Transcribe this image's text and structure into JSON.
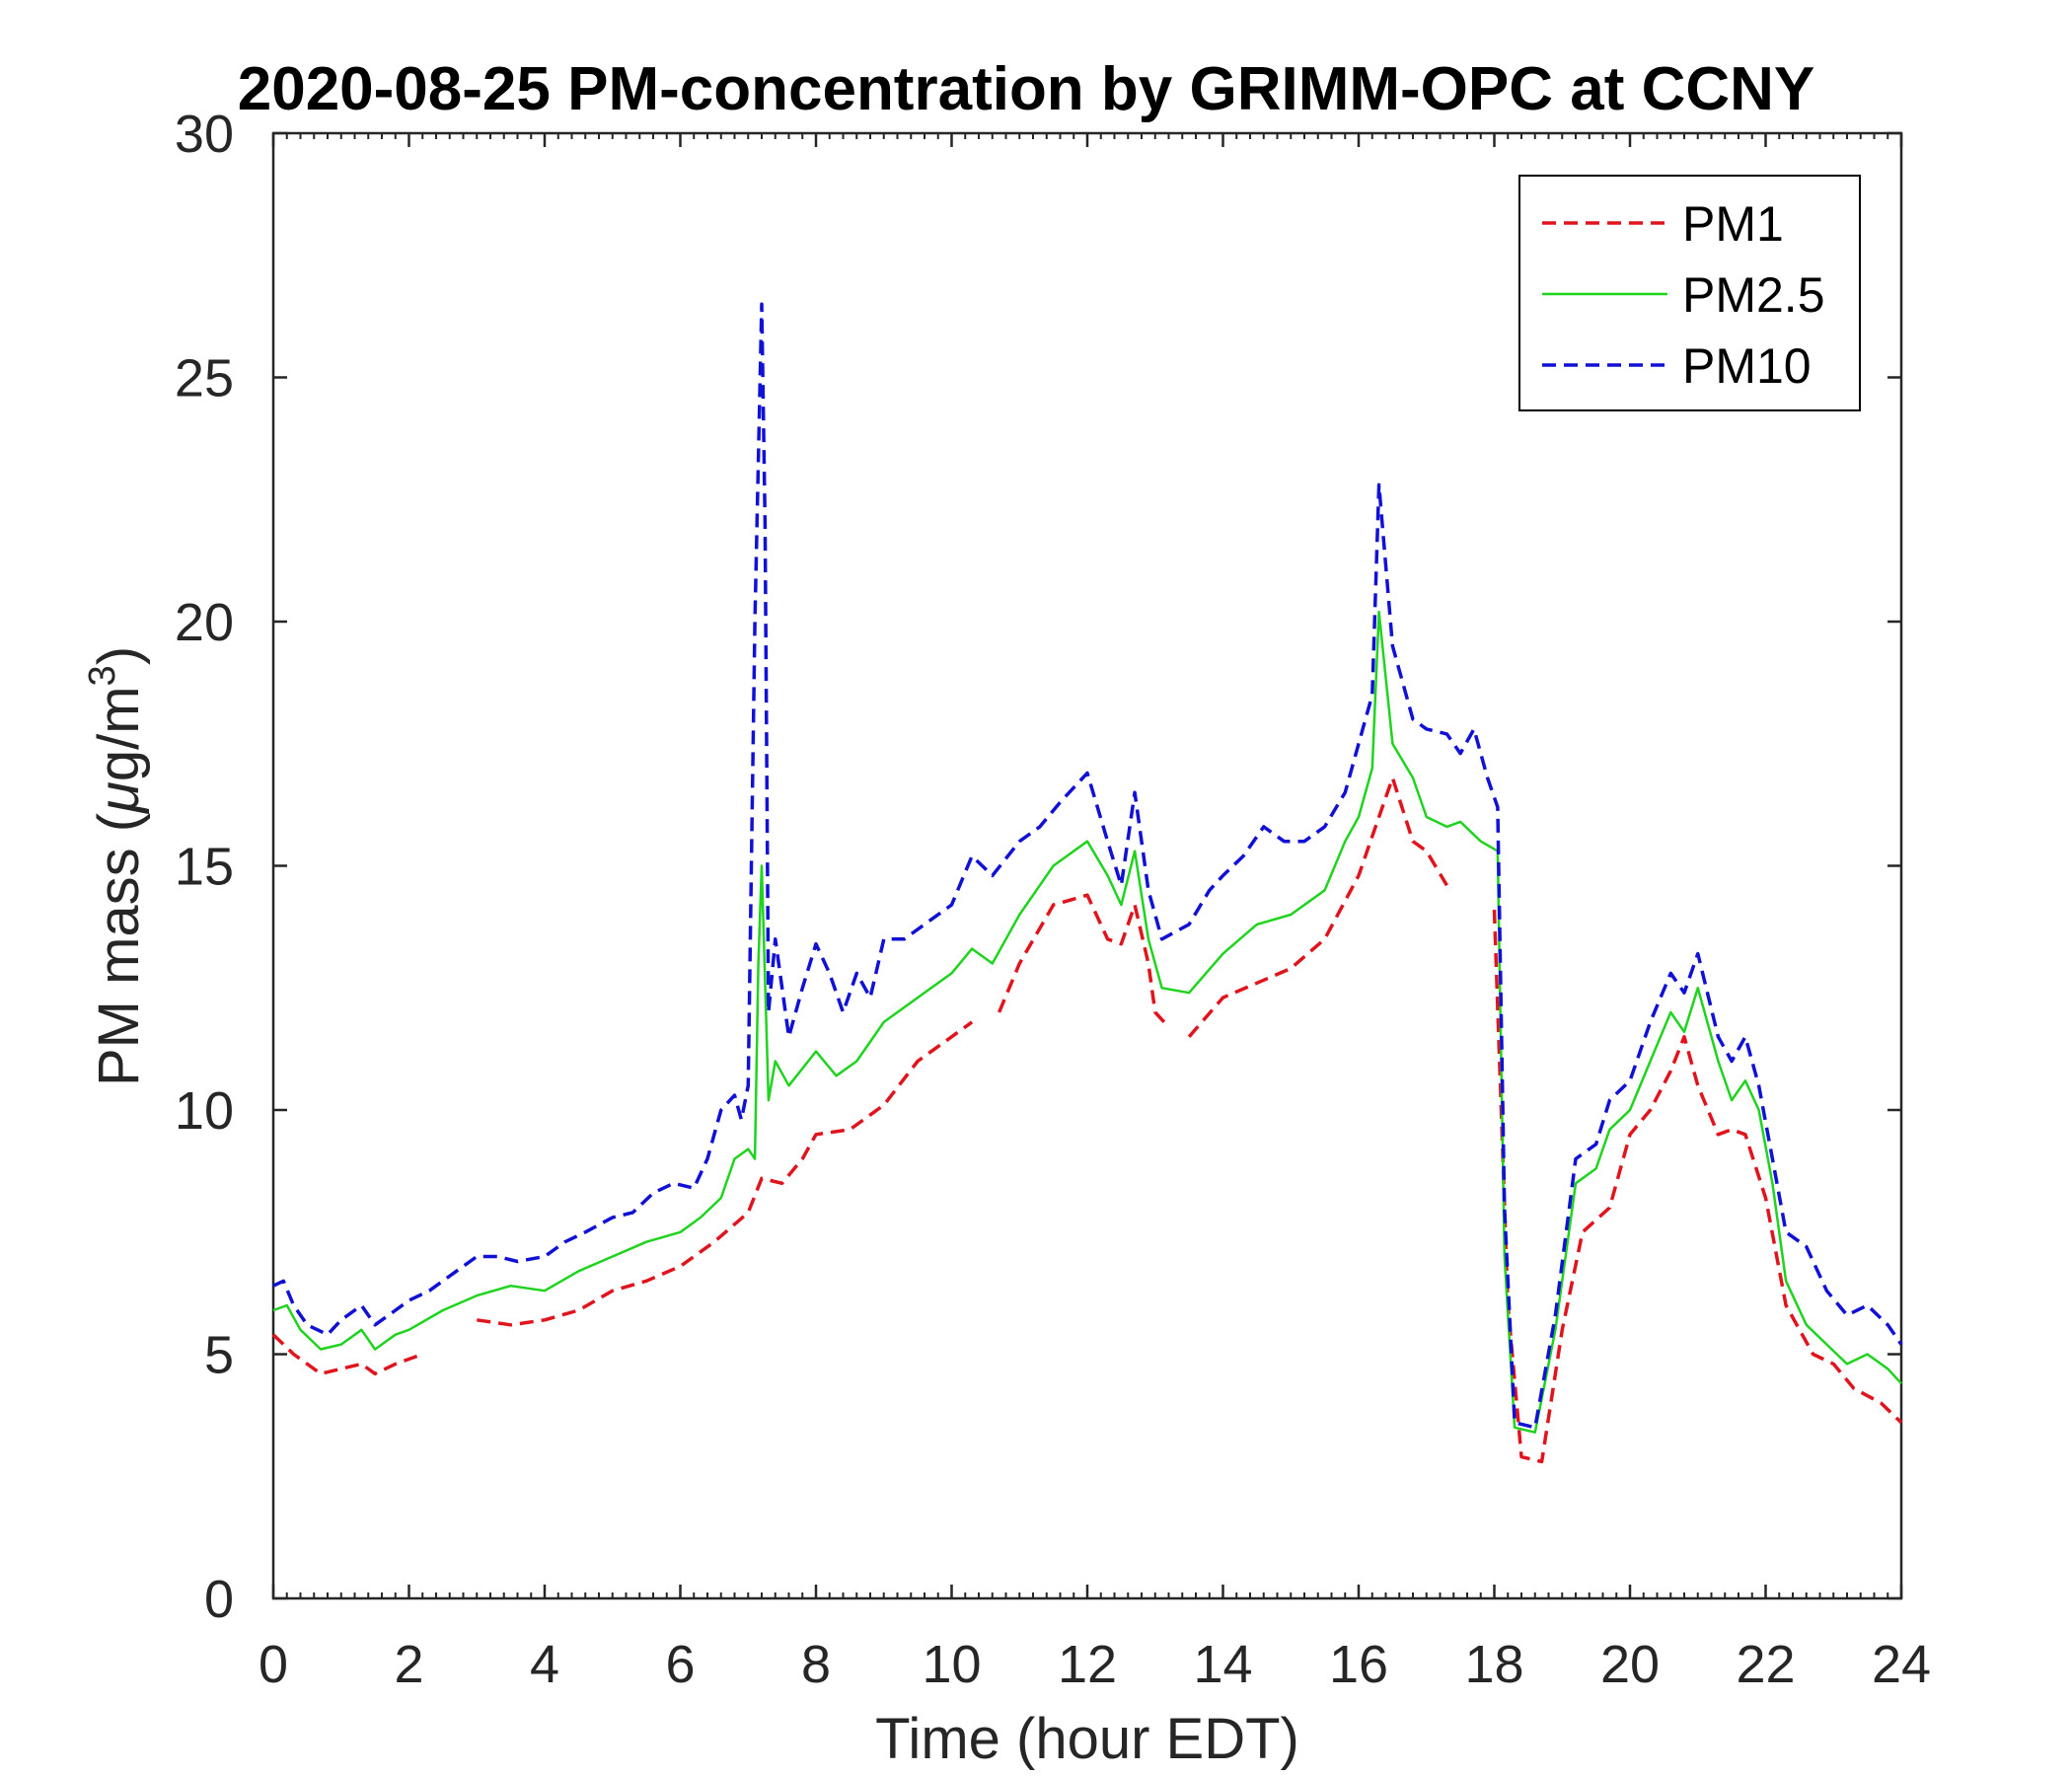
{
  "chart_data": {
    "type": "line",
    "title": "2020-08-25 PM-concentration by GRIMM-OPC at CCNY",
    "xlabel": "Time (hour EDT)",
    "ylabel_prefix": "PM mass (",
    "ylabel_mu": "μ",
    "ylabel_unit": "g/m",
    "ylabel_exp": "3",
    "ylabel_suffix": ")",
    "xlim": [
      0,
      24
    ],
    "ylim": [
      0,
      30
    ],
    "xticks": [
      0,
      2,
      4,
      6,
      8,
      10,
      12,
      14,
      16,
      18,
      20,
      22,
      24
    ],
    "yticks": [
      0,
      5,
      10,
      15,
      20,
      25,
      30
    ],
    "grid": false,
    "legend_position": "top-right",
    "series": [
      {
        "name": "PM1",
        "color": "#e0141c",
        "style": "dashed",
        "x": [
          0,
          0.3,
          0.7,
          1.0,
          1.3,
          1.5,
          1.8,
          2.2,
          null,
          3.0,
          3.5,
          4.0,
          4.5,
          5.0,
          5.5,
          6.0,
          6.5,
          7.0,
          7.2,
          7.5,
          7.8,
          8.0,
          8.5,
          9.0,
          9.5,
          10.0,
          10.3,
          null,
          10.7,
          11.0,
          11.5,
          12.0,
          12.3,
          12.5,
          12.7,
          12.9,
          13.0,
          13.2,
          null,
          13.5,
          14.0,
          14.5,
          15.0,
          15.5,
          16.0,
          16.3,
          16.5,
          16.8,
          17.0,
          17.3,
          null,
          18.0,
          18.2,
          18.4,
          18.7,
          19.0,
          19.3,
          19.7,
          20.0,
          20.3,
          20.6,
          20.8,
          21.0,
          21.3,
          21.5,
          21.7,
          22.0,
          22.3,
          22.7,
          23.0,
          23.3,
          23.7,
          24.0
        ],
        "y": [
          5.4,
          5.0,
          4.6,
          4.7,
          4.8,
          4.6,
          4.8,
          5.0,
          null,
          5.7,
          5.6,
          5.7,
          5.9,
          6.3,
          6.5,
          6.8,
          7.3,
          7.9,
          8.6,
          8.5,
          9.0,
          9.5,
          9.6,
          10.1,
          11.0,
          11.5,
          11.8,
          null,
          12.0,
          13.0,
          14.2,
          14.4,
          13.5,
          13.4,
          14.2,
          13.0,
          12.0,
          11.7,
          null,
          11.5,
          12.3,
          12.6,
          12.9,
          13.5,
          14.8,
          16.0,
          16.8,
          15.5,
          15.3,
          14.6,
          null,
          14.1,
          6.0,
          2.9,
          2.8,
          5.5,
          7.5,
          8.0,
          9.5,
          10.0,
          10.8,
          11.5,
          10.5,
          9.5,
          9.6,
          9.5,
          8.2,
          6.0,
          5.0,
          4.8,
          4.3,
          4.0,
          3.6
        ]
      },
      {
        "name": "PM2.5",
        "color": "#1fd31f",
        "style": "solid",
        "x": [
          0,
          0.2,
          0.4,
          0.7,
          1.0,
          1.3,
          1.5,
          1.8,
          2.0,
          2.5,
          3.0,
          3.5,
          4.0,
          4.5,
          5.0,
          5.5,
          6.0,
          6.3,
          6.6,
          6.8,
          7.0,
          7.1,
          7.15,
          7.2,
          7.3,
          7.4,
          7.6,
          8.0,
          8.3,
          8.6,
          9.0,
          9.5,
          10.0,
          10.3,
          10.6,
          11.0,
          11.5,
          12.0,
          12.3,
          12.5,
          12.7,
          12.9,
          13.1,
          13.5,
          14.0,
          14.5,
          15.0,
          15.5,
          15.8,
          16.0,
          16.2,
          16.3,
          16.5,
          16.8,
          17.0,
          17.3,
          17.5,
          17.8,
          18.05,
          18.15,
          18.3,
          18.6,
          18.9,
          19.2,
          19.5,
          19.7,
          20.0,
          20.3,
          20.6,
          20.8,
          21.0,
          21.3,
          21.5,
          21.7,
          21.9,
          22.1,
          22.3,
          22.6,
          22.9,
          23.2,
          23.5,
          23.8,
          24.0
        ],
        "y": [
          5.9,
          6.0,
          5.5,
          5.1,
          5.2,
          5.5,
          5.1,
          5.4,
          5.5,
          5.9,
          6.2,
          6.4,
          6.3,
          6.7,
          7.0,
          7.3,
          7.5,
          7.8,
          8.2,
          9.0,
          9.2,
          9.0,
          13.0,
          15.0,
          10.2,
          11.0,
          10.5,
          11.2,
          10.7,
          11.0,
          11.8,
          12.3,
          12.8,
          13.3,
          13.0,
          14.0,
          15.0,
          15.5,
          14.8,
          14.2,
          15.3,
          13.5,
          12.5,
          12.4,
          13.2,
          13.8,
          14.0,
          14.5,
          15.5,
          16.0,
          17.0,
          20.2,
          17.5,
          16.8,
          16.0,
          15.8,
          15.9,
          15.5,
          15.3,
          7.0,
          3.5,
          3.4,
          5.5,
          8.5,
          8.8,
          9.6,
          10.0,
          11.0,
          12.0,
          11.6,
          12.5,
          11.0,
          10.2,
          10.6,
          10.0,
          8.5,
          6.5,
          5.6,
          5.2,
          4.8,
          5.0,
          4.7,
          4.4
        ]
      },
      {
        "name": "PM10",
        "color": "#1111d6",
        "style": "dashed",
        "x": [
          0,
          0.15,
          0.3,
          0.5,
          0.8,
          1.0,
          1.3,
          1.5,
          1.8,
          2.0,
          2.3,
          2.7,
          3.0,
          3.3,
          3.6,
          4.0,
          4.3,
          4.6,
          5.0,
          5.3,
          5.6,
          5.9,
          6.2,
          6.4,
          6.6,
          6.8,
          6.9,
          7.0,
          7.1,
          7.2,
          7.25,
          7.3,
          7.4,
          7.6,
          7.8,
          8.0,
          8.2,
          8.4,
          8.6,
          8.8,
          9.0,
          9.3,
          9.6,
          10.0,
          10.3,
          10.6,
          11.0,
          11.3,
          11.6,
          12.0,
          12.3,
          12.5,
          12.7,
          12.9,
          13.1,
          13.5,
          13.8,
          14.0,
          14.3,
          14.6,
          14.9,
          15.2,
          15.5,
          15.8,
          16.0,
          16.2,
          16.3,
          16.5,
          16.8,
          17.0,
          17.3,
          17.5,
          17.7,
          17.9,
          18.05,
          18.15,
          18.3,
          18.6,
          18.9,
          19.2,
          19.5,
          19.7,
          20.0,
          20.3,
          20.6,
          20.8,
          21.0,
          21.3,
          21.5,
          21.7,
          21.9,
          22.1,
          22.3,
          22.6,
          22.9,
          23.2,
          23.5,
          23.8,
          24.0
        ],
        "y": [
          6.4,
          6.5,
          6.0,
          5.6,
          5.4,
          5.7,
          6.0,
          5.6,
          5.9,
          6.1,
          6.3,
          6.7,
          7.0,
          7.0,
          6.9,
          7.0,
          7.3,
          7.5,
          7.8,
          7.9,
          8.3,
          8.5,
          8.4,
          9.0,
          10.0,
          10.3,
          9.8,
          10.5,
          20.0,
          26.5,
          22.0,
          12.0,
          13.5,
          11.5,
          12.5,
          13.4,
          12.8,
          12.0,
          12.8,
          12.3,
          13.5,
          13.5,
          13.8,
          14.2,
          15.2,
          14.8,
          15.5,
          15.8,
          16.3,
          16.9,
          15.5,
          14.6,
          16.5,
          14.5,
          13.5,
          13.8,
          14.5,
          14.8,
          15.2,
          15.8,
          15.5,
          15.5,
          15.8,
          16.5,
          17.5,
          18.5,
          22.8,
          19.5,
          18.0,
          17.8,
          17.7,
          17.3,
          17.8,
          16.8,
          16.2,
          8.0,
          3.6,
          3.5,
          5.8,
          9.0,
          9.3,
          10.2,
          10.6,
          11.8,
          12.8,
          12.4,
          13.2,
          11.5,
          11.0,
          11.5,
          10.5,
          9.0,
          7.5,
          7.2,
          6.3,
          5.8,
          6.0,
          5.6,
          5.2
        ]
      }
    ]
  }
}
